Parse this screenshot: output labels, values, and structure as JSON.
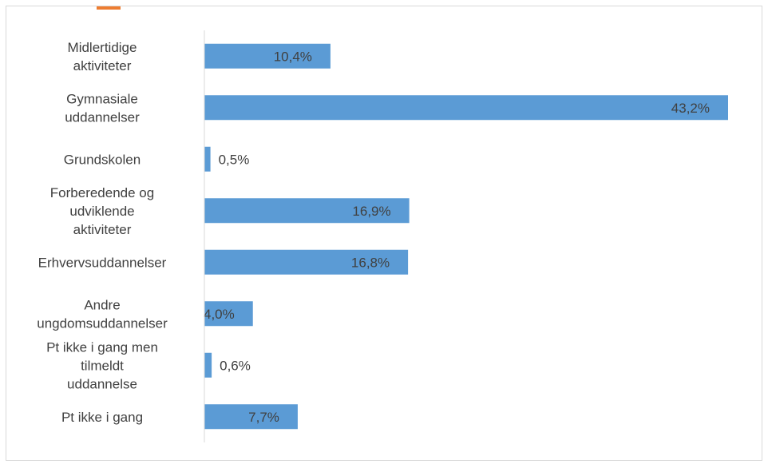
{
  "chart_data": {
    "type": "bar",
    "orientation": "horizontal",
    "categories": [
      [
        "Midlertidige",
        "aktiviteter"
      ],
      [
        "Gymnasiale",
        "uddannelser"
      ],
      [
        "Grundskolen"
      ],
      [
        "Forberedende og",
        "udviklende",
        "aktiviteter"
      ],
      [
        "Erhvervsuddannelser"
      ],
      [
        "Andre",
        "ungdomsuddannelser"
      ],
      [
        "Pt ikke i gang men",
        "tilmeldt",
        "uddannelse"
      ],
      [
        "Pt ikke i gang"
      ]
    ],
    "values": [
      10.4,
      43.2,
      0.5,
      16.9,
      16.8,
      4.0,
      0.6,
      7.7
    ],
    "data_labels": [
      "10,4%",
      "43,2%",
      "0,5%",
      "16,9%",
      "16,8%",
      "4,0%",
      "0,6%",
      "7,7%"
    ],
    "xlim": [
      0,
      43.2
    ],
    "grid": false,
    "legend": "none",
    "bar_color": "#5b9bd5",
    "axis_color": "#d9d9d9",
    "accent_color": "#ed7d31"
  }
}
